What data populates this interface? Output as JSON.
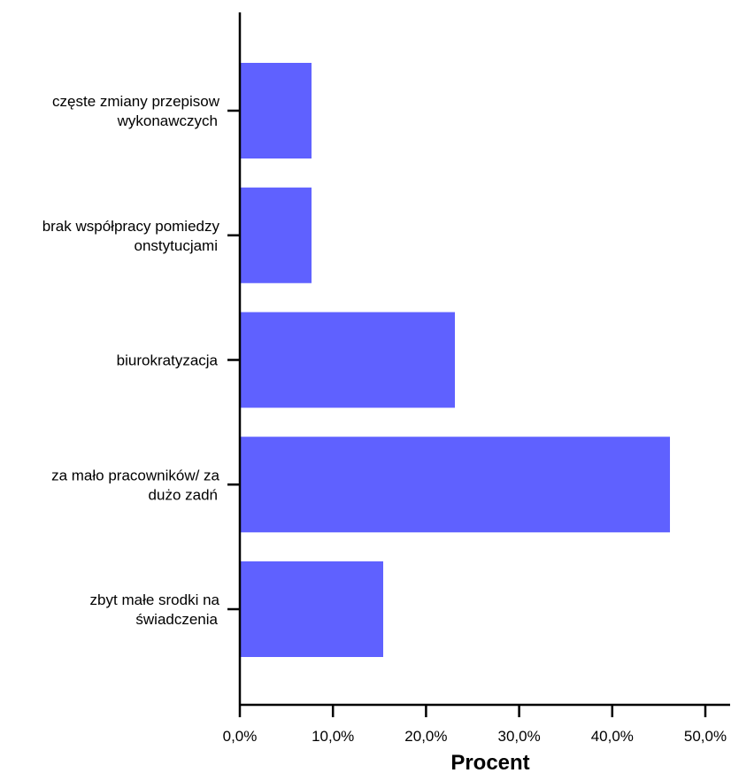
{
  "chart_data": {
    "type": "bar",
    "orientation": "horizontal",
    "categories": [
      [
        "częste zmiany przepisow",
        "wykonawczych"
      ],
      [
        "brak współpracy pomiedzy",
        "onstytucjami"
      ],
      [
        "biurokratyzacja"
      ],
      [
        "za mało pracowników/ za",
        "dużo zadń"
      ],
      [
        "zbyt małe srodki na",
        "świadczenia"
      ]
    ],
    "values": [
      7.7,
      7.7,
      23.1,
      46.2,
      15.4
    ],
    "xlabel": "Procent",
    "ylabel": "",
    "xlim": [
      0,
      52.5
    ],
    "x_ticks": [
      0,
      10,
      20,
      30,
      40,
      50
    ],
    "x_tick_labels": [
      "0,0%",
      "10,0%",
      "20,0%",
      "30,0%",
      "40,0%",
      "50,0%"
    ],
    "grid": false,
    "bar_color": "#5f61ff"
  }
}
